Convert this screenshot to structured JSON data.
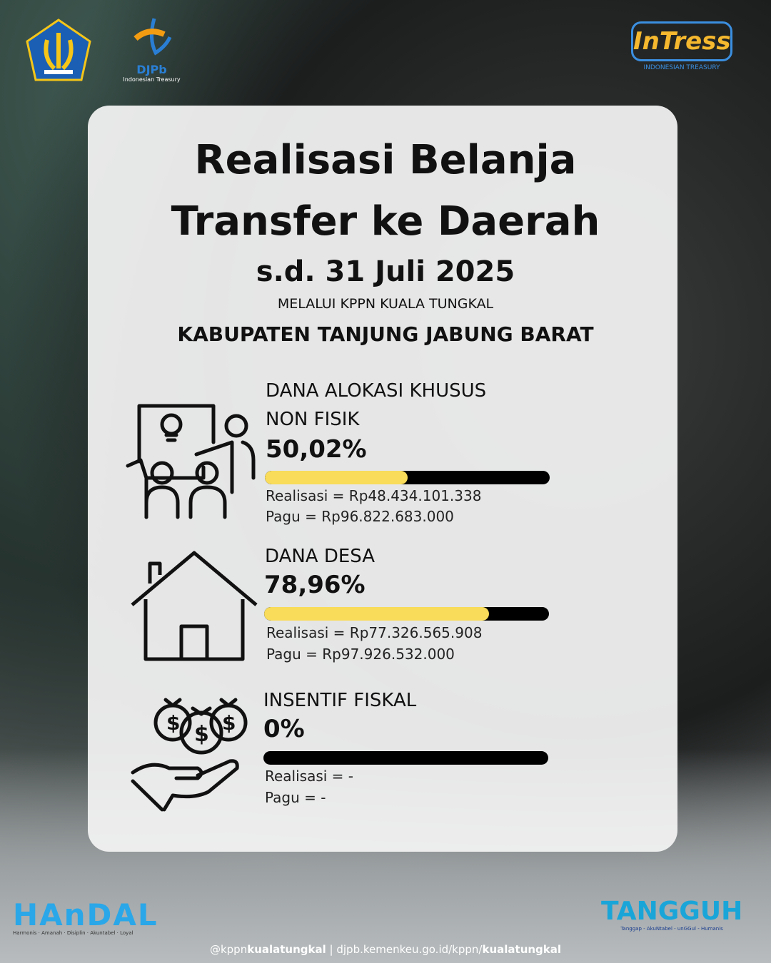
{
  "logos": {
    "kemenkeu": "Kementerian Keuangan",
    "djpb": "DJPb",
    "djpb_sub": "Indonesian Treasury",
    "intress": "InTress",
    "intress_sub": "INDONESIAN TREASURY",
    "handal": "HAnDAL",
    "handal_sub": "Harmonis · Amanah · Disiplin · Akuntabel · Loyal",
    "tangguh": "TANGGUH",
    "tangguh_sub": "Tanggap - AkuNtabel - unGGul - Humanis"
  },
  "header": {
    "title_line1": "Realisasi Belanja",
    "title_line2": "Transfer ke Daerah",
    "date": "s.d. 31 Juli 2025",
    "via": "MELALUI KPPN KUALA TUNGKAL",
    "region": "KABUPATEN TANJUNG JABUNG BARAT"
  },
  "colors": {
    "bar_fill": "#f8dc5a",
    "bar_track": "#000000"
  },
  "items": [
    {
      "label_line1": "DANA ALOKASI KHUSUS",
      "label_line2": "NON FISIK",
      "percent_text": "50,02%",
      "percent": 50.02,
      "realisasi": "Realisasi = Rp48.434.101.338",
      "pagu": "Pagu = Rp96.822.683.000",
      "icon": "presentation-icon"
    },
    {
      "label_line1": "DANA DESA",
      "percent_text": "78,96%",
      "percent": 78.96,
      "realisasi": "Realisasi = Rp77.326.565.908",
      "pagu": "Pagu = Rp97.926.532.000",
      "icon": "house-icon"
    },
    {
      "label_line1": "INSENTIF FISKAL",
      "percent_text": "0%",
      "percent": 0,
      "realisasi": "Realisasi = -",
      "pagu": "Pagu = -",
      "icon": "money-hand-icon"
    }
  ],
  "footer": {
    "handle_pre": "@kppn",
    "handle_bold": "kualatungkal",
    "sep": " | djpb.kemenkeu.go.id/kppn/",
    "url_bold": "kualatungkal"
  }
}
